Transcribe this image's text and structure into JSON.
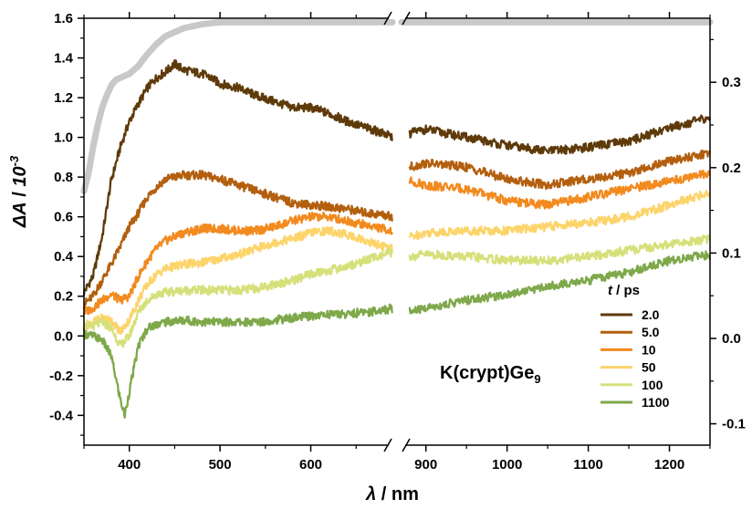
{
  "chart_data": {
    "type": "line",
    "annotation": {
      "text": "K(crypt)Ge",
      "subscript": "9"
    },
    "xlabel": {
      "symbol": "λ",
      "unit": "nm"
    },
    "ylabel": {
      "symbol": "ΔA",
      "unit": "10",
      "exponent": "-3"
    },
    "x_segments": [
      {
        "xlim": [
          350,
          690
        ],
        "ticks": [
          400,
          500,
          600
        ],
        "minor": [
          350,
          450,
          550,
          650
        ]
      },
      {
        "xlim": [
          870,
          1250
        ],
        "ticks": [
          900,
          1000,
          1100,
          1200
        ],
        "minor": [
          950,
          1050,
          1150,
          1250
        ]
      }
    ],
    "y_left": {
      "ylim": [
        -0.55,
        1.6
      ],
      "ticks": [
        -0.4,
        -0.2,
        0.0,
        0.2,
        0.4,
        0.6,
        0.8,
        1.0,
        1.2,
        1.4,
        1.6
      ]
    },
    "y_right": {
      "ylim": [
        -0.125,
        0.375
      ],
      "ticks": [
        -0.1,
        0.0,
        0.1,
        0.2,
        0.3
      ]
    },
    "legend": {
      "title_symbol": "t",
      "title_unit": "ps",
      "placement": "bottom-right"
    },
    "grid": false,
    "series": [
      {
        "name": "2.0",
        "color": "#5e3a0a",
        "axis": "left",
        "points": [
          [
            350,
            0.22
          ],
          [
            360,
            0.3
          ],
          [
            370,
            0.5
          ],
          [
            380,
            0.78
          ],
          [
            390,
            0.95
          ],
          [
            400,
            1.08
          ],
          [
            410,
            1.17
          ],
          [
            420,
            1.25
          ],
          [
            430,
            1.3
          ],
          [
            440,
            1.33
          ],
          [
            450,
            1.37
          ],
          [
            460,
            1.34
          ],
          [
            470,
            1.33
          ],
          [
            480,
            1.32
          ],
          [
            490,
            1.3
          ],
          [
            500,
            1.27
          ],
          [
            520,
            1.25
          ],
          [
            540,
            1.21
          ],
          [
            560,
            1.18
          ],
          [
            580,
            1.15
          ],
          [
            600,
            1.15
          ],
          [
            620,
            1.12
          ],
          [
            640,
            1.08
          ],
          [
            660,
            1.05
          ],
          [
            680,
            1.02
          ],
          [
            690,
            1.0
          ]
        ],
        "points_b": [
          [
            880,
            1.02
          ],
          [
            900,
            1.04
          ],
          [
            950,
            1.0
          ],
          [
            1000,
            0.96
          ],
          [
            1050,
            0.93
          ],
          [
            1100,
            0.95
          ],
          [
            1150,
            0.98
          ],
          [
            1200,
            1.05
          ],
          [
            1250,
            1.1
          ]
        ]
      },
      {
        "name": "5.0",
        "color": "#b35f0e",
        "axis": "left",
        "points": [
          [
            350,
            0.16
          ],
          [
            360,
            0.2
          ],
          [
            370,
            0.28
          ],
          [
            380,
            0.36
          ],
          [
            390,
            0.45
          ],
          [
            400,
            0.55
          ],
          [
            410,
            0.62
          ],
          [
            420,
            0.7
          ],
          [
            430,
            0.75
          ],
          [
            440,
            0.79
          ],
          [
            460,
            0.81
          ],
          [
            480,
            0.81
          ],
          [
            500,
            0.79
          ],
          [
            520,
            0.76
          ],
          [
            540,
            0.73
          ],
          [
            560,
            0.7
          ],
          [
            580,
            0.67
          ],
          [
            600,
            0.66
          ],
          [
            620,
            0.65
          ],
          [
            640,
            0.64
          ],
          [
            660,
            0.62
          ],
          [
            680,
            0.61
          ],
          [
            690,
            0.6
          ]
        ],
        "points_b": [
          [
            880,
            0.85
          ],
          [
            900,
            0.87
          ],
          [
            950,
            0.85
          ],
          [
            1000,
            0.79
          ],
          [
            1050,
            0.76
          ],
          [
            1100,
            0.79
          ],
          [
            1150,
            0.82
          ],
          [
            1200,
            0.88
          ],
          [
            1250,
            0.92
          ]
        ]
      },
      {
        "name": "10",
        "color": "#f28a1e",
        "axis": "left",
        "points": [
          [
            350,
            0.12
          ],
          [
            360,
            0.14
          ],
          [
            370,
            0.18
          ],
          [
            380,
            0.21
          ],
          [
            390,
            0.18
          ],
          [
            400,
            0.2
          ],
          [
            410,
            0.3
          ],
          [
            420,
            0.38
          ],
          [
            430,
            0.44
          ],
          [
            440,
            0.48
          ],
          [
            460,
            0.52
          ],
          [
            480,
            0.54
          ],
          [
            500,
            0.54
          ],
          [
            520,
            0.53
          ],
          [
            540,
            0.53
          ],
          [
            560,
            0.55
          ],
          [
            580,
            0.58
          ],
          [
            600,
            0.6
          ],
          [
            620,
            0.6
          ],
          [
            640,
            0.58
          ],
          [
            660,
            0.56
          ],
          [
            680,
            0.54
          ],
          [
            690,
            0.53
          ]
        ],
        "points_b": [
          [
            880,
            0.78
          ],
          [
            900,
            0.76
          ],
          [
            950,
            0.74
          ],
          [
            1000,
            0.68
          ],
          [
            1050,
            0.66
          ],
          [
            1100,
            0.7
          ],
          [
            1150,
            0.74
          ],
          [
            1200,
            0.78
          ],
          [
            1250,
            0.82
          ]
        ]
      },
      {
        "name": "50",
        "color": "#fcd46a",
        "axis": "left",
        "points": [
          [
            350,
            0.05
          ],
          [
            360,
            0.07
          ],
          [
            370,
            0.09
          ],
          [
            380,
            0.08
          ],
          [
            390,
            0.02
          ],
          [
            400,
            0.08
          ],
          [
            410,
            0.18
          ],
          [
            420,
            0.26
          ],
          [
            430,
            0.31
          ],
          [
            440,
            0.34
          ],
          [
            460,
            0.36
          ],
          [
            480,
            0.37
          ],
          [
            500,
            0.39
          ],
          [
            520,
            0.41
          ],
          [
            540,
            0.44
          ],
          [
            560,
            0.47
          ],
          [
            580,
            0.49
          ],
          [
            600,
            0.52
          ],
          [
            620,
            0.53
          ],
          [
            640,
            0.51
          ],
          [
            660,
            0.48
          ],
          [
            680,
            0.45
          ],
          [
            690,
            0.44
          ]
        ],
        "points_b": [
          [
            880,
            0.5
          ],
          [
            900,
            0.52
          ],
          [
            950,
            0.53
          ],
          [
            1000,
            0.53
          ],
          [
            1050,
            0.55
          ],
          [
            1100,
            0.57
          ],
          [
            1150,
            0.6
          ],
          [
            1200,
            0.66
          ],
          [
            1250,
            0.72
          ]
        ]
      },
      {
        "name": "100",
        "color": "#d6e07a",
        "axis": "left",
        "points": [
          [
            350,
            0.04
          ],
          [
            360,
            0.05
          ],
          [
            370,
            0.07
          ],
          [
            380,
            0.04
          ],
          [
            390,
            -0.05
          ],
          [
            400,
            0.0
          ],
          [
            410,
            0.12
          ],
          [
            420,
            0.18
          ],
          [
            430,
            0.21
          ],
          [
            440,
            0.22
          ],
          [
            460,
            0.23
          ],
          [
            480,
            0.23
          ],
          [
            500,
            0.23
          ],
          [
            520,
            0.23
          ],
          [
            540,
            0.24
          ],
          [
            560,
            0.26
          ],
          [
            580,
            0.28
          ],
          [
            600,
            0.31
          ],
          [
            620,
            0.33
          ],
          [
            640,
            0.35
          ],
          [
            660,
            0.38
          ],
          [
            680,
            0.41
          ],
          [
            690,
            0.42
          ]
        ],
        "points_b": [
          [
            880,
            0.4
          ],
          [
            900,
            0.41
          ],
          [
            950,
            0.4
          ],
          [
            1000,
            0.38
          ],
          [
            1050,
            0.38
          ],
          [
            1100,
            0.4
          ],
          [
            1150,
            0.43
          ],
          [
            1200,
            0.46
          ],
          [
            1250,
            0.49
          ]
        ]
      },
      {
        "name": "1100",
        "color": "#7ea84a",
        "axis": "left",
        "points": [
          [
            350,
            0.01
          ],
          [
            360,
            0.0
          ],
          [
            370,
            -0.02
          ],
          [
            380,
            -0.1
          ],
          [
            390,
            -0.32
          ],
          [
            395,
            -0.4
          ],
          [
            400,
            -0.28
          ],
          [
            410,
            -0.05
          ],
          [
            420,
            0.04
          ],
          [
            430,
            0.06
          ],
          [
            440,
            0.07
          ],
          [
            460,
            0.08
          ],
          [
            480,
            0.07
          ],
          [
            500,
            0.07
          ],
          [
            520,
            0.07
          ],
          [
            540,
            0.07
          ],
          [
            560,
            0.08
          ],
          [
            580,
            0.09
          ],
          [
            600,
            0.1
          ],
          [
            620,
            0.11
          ],
          [
            640,
            0.11
          ],
          [
            660,
            0.12
          ],
          [
            680,
            0.13
          ],
          [
            690,
            0.14
          ]
        ],
        "points_b": [
          [
            880,
            0.12
          ],
          [
            900,
            0.14
          ],
          [
            950,
            0.18
          ],
          [
            1000,
            0.21
          ],
          [
            1050,
            0.25
          ],
          [
            1100,
            0.28
          ],
          [
            1150,
            0.32
          ],
          [
            1200,
            0.38
          ],
          [
            1250,
            0.41
          ]
        ]
      },
      {
        "name": "",
        "color": "#c8c8c8",
        "axis": "left",
        "thick": true,
        "points": [
          [
            350,
            0.73
          ],
          [
            355,
            0.82
          ],
          [
            360,
            0.95
          ],
          [
            365,
            1.06
          ],
          [
            370,
            1.15
          ],
          [
            375,
            1.21
          ],
          [
            380,
            1.26
          ],
          [
            385,
            1.29
          ],
          [
            390,
            1.3
          ],
          [
            400,
            1.32
          ],
          [
            410,
            1.36
          ],
          [
            420,
            1.42
          ],
          [
            430,
            1.47
          ],
          [
            440,
            1.51
          ],
          [
            460,
            1.55
          ],
          [
            480,
            1.57
          ],
          [
            500,
            1.58
          ],
          [
            520,
            1.58
          ],
          [
            560,
            1.58
          ],
          [
            600,
            1.58
          ],
          [
            650,
            1.58
          ],
          [
            690,
            1.58
          ]
        ],
        "points_b": [
          [
            870,
            1.58
          ],
          [
            900,
            1.58
          ],
          [
            1000,
            1.58
          ],
          [
            1100,
            1.58
          ],
          [
            1200,
            1.58
          ],
          [
            1250,
            1.58
          ]
        ]
      }
    ]
  }
}
